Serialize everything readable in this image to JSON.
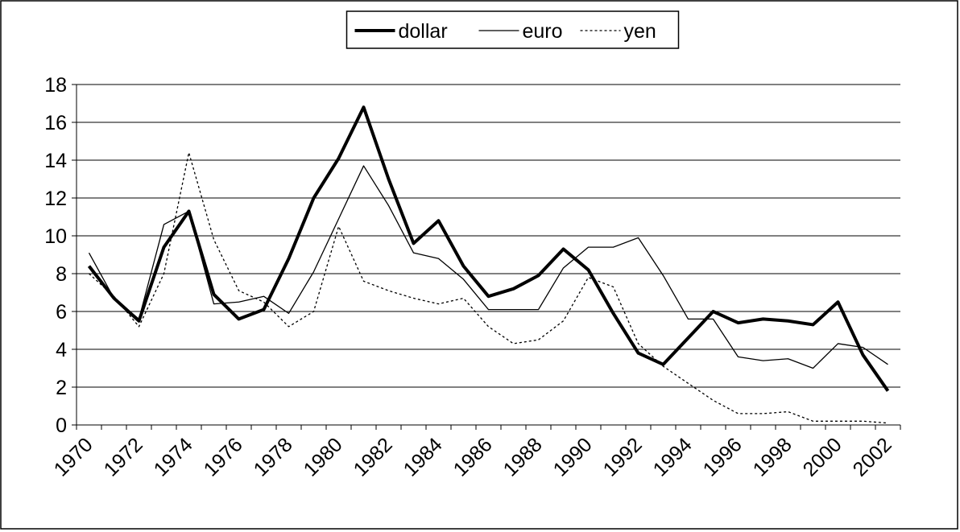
{
  "chart_data": {
    "type": "line",
    "categories": [
      "1970",
      null,
      "1972",
      null,
      "1974",
      null,
      "1976",
      null,
      "1978",
      null,
      "1980",
      null,
      "1982",
      null,
      "1984",
      null,
      "1986",
      null,
      "1988",
      null,
      "1990",
      null,
      "1992",
      null,
      "1994",
      null,
      "1996",
      null,
      "1998",
      null,
      "2000",
      null,
      "2002"
    ],
    "series": [
      {
        "name": "dollar",
        "color": "#000000",
        "line_style": "thick",
        "values": [
          8.4,
          6.7,
          5.5,
          9.4,
          11.3,
          6.9,
          5.6,
          6.1,
          8.8,
          12.0,
          14.1,
          16.8,
          13.0,
          9.6,
          10.8,
          8.4,
          6.8,
          7.2,
          7.9,
          9.3,
          8.2,
          5.9,
          3.8,
          3.2,
          4.6,
          6.0,
          5.4,
          5.6,
          5.5,
          5.3,
          6.5,
          3.7,
          1.8
        ]
      },
      {
        "name": "euro",
        "color": "#000000",
        "line_style": "thin",
        "values": [
          9.1,
          6.7,
          5.6,
          10.6,
          11.3,
          6.4,
          6.5,
          6.8,
          5.9,
          8.1,
          10.9,
          13.7,
          11.6,
          9.1,
          8.8,
          7.7,
          6.1,
          6.1,
          6.1,
          8.3,
          9.4,
          9.4,
          9.9,
          7.9,
          5.6,
          5.6,
          3.6,
          3.4,
          3.5,
          3.0,
          4.3,
          4.1,
          3.2
        ]
      },
      {
        "name": "yen",
        "color": "#000000",
        "line_style": "dotted",
        "values": [
          8.0,
          6.8,
          5.2,
          8.0,
          14.4,
          9.8,
          7.1,
          6.5,
          5.2,
          6.0,
          10.5,
          7.6,
          7.1,
          6.7,
          6.4,
          6.7,
          5.2,
          4.3,
          4.5,
          5.5,
          7.8,
          7.3,
          4.3,
          3.1,
          2.2,
          1.3,
          0.6,
          0.6,
          0.7,
          0.2,
          0.2,
          0.2,
          0.1
        ]
      }
    ],
    "ylim": [
      0,
      18
    ],
    "yticks": [
      0,
      2,
      4,
      6,
      8,
      10,
      12,
      14,
      16,
      18
    ],
    "grid": true,
    "legend": "top"
  }
}
